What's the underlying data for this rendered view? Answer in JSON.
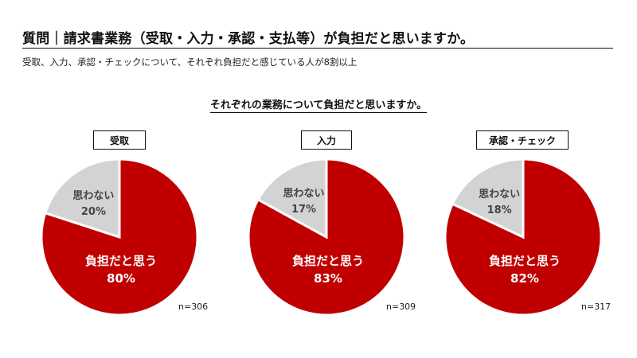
{
  "header": {
    "title": "質問｜請求書業務（受取・入力・承認・支払等）が負担だと思いますか。",
    "subtitle": "受取、入力、承認・チェックについて、それぞれ負担だと感じている人が8割以上"
  },
  "section_title": "それぞれの業務について負担だと思いますか。",
  "colors": {
    "burden": "#c00000",
    "no_burden": "#d3d3d3"
  },
  "chart_data": [
    {
      "type": "pie",
      "title": "受取",
      "labels": [
        "負担だと思う",
        "思わない"
      ],
      "values": [
        80,
        20
      ],
      "value_labels": [
        "80%",
        "20%"
      ],
      "n": "n=306"
    },
    {
      "type": "pie",
      "title": "入力",
      "labels": [
        "負担だと思う",
        "思わない"
      ],
      "values": [
        83,
        17
      ],
      "value_labels": [
        "83%",
        "17%"
      ],
      "n": "n=309"
    },
    {
      "type": "pie",
      "title": "承認・チェック",
      "labels": [
        "負担だと思う",
        "思わない"
      ],
      "values": [
        82,
        18
      ],
      "value_labels": [
        "82%",
        "18%"
      ],
      "n": "n=317"
    }
  ]
}
